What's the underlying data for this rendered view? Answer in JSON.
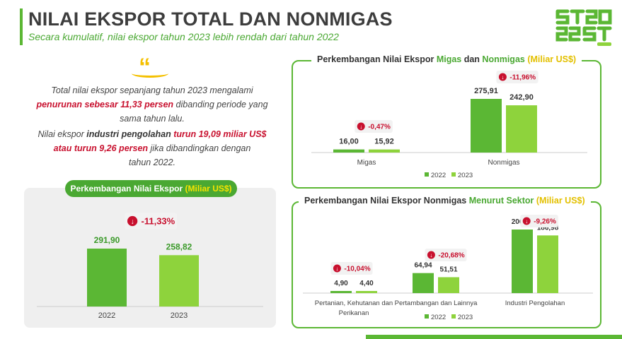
{
  "header": {
    "title": "NILAI EKSPOR TOTAL DAN NONMIGAS",
    "subtitle": "Secara kumulatif, nilai ekspor tahun 2023 lebih rendah dari tahun 2022",
    "logo_text": "ST2023"
  },
  "narrative": {
    "quote_mark": "“",
    "p1_a": "Total nilai ekspor sepanjang tahun 2023 mengalami",
    "p1_b_red": "penurunan sebesar 11,33 persen",
    "p1_b_rest": " dibanding periode yang",
    "p1_c": "sama tahun lalu.",
    "p2_a": "Nilai ekspor ",
    "p2_a_bold": "industri pengolahan",
    "p2_a_red": " turun 19,09 miliar US$",
    "p2_b_red": "atau turun 9,26 persen",
    "p2_b_rest": " jika dibandingkan dengan",
    "p2_c": "tahun 2022."
  },
  "panels": {
    "left_title_a": "Perkembangan Nilai Ekspor ",
    "left_title_b": "(Miliar US$)",
    "top_title_a": "Perkembangan Nilai Ekspor ",
    "top_title_b": "Migas",
    "top_title_c": " dan ",
    "top_title_d": "Nonmigas",
    "top_title_e": " (Miliar US$)",
    "bot_title_a": "Perkembangan Nilai Ekspor Nonmigas ",
    "bot_title_b": "Menurut Sektor",
    "bot_title_c": " (Miliar US$)"
  },
  "colors": {
    "bar_2022": "#5bb734",
    "bar_2023": "#8ed33c",
    "badge_red": "#c8102e",
    "axis": "#cccccc"
  },
  "chart_data": [
    {
      "type": "bar",
      "title": "Perkembangan Nilai Ekspor (Miliar US$)",
      "categories": [
        "2022",
        "2023"
      ],
      "values": [
        291.9,
        258.82
      ],
      "value_labels": [
        "291,90",
        "258,82"
      ],
      "change_label": "-11,33%"
    },
    {
      "type": "bar",
      "title": "Perkembangan Nilai Ekspor Migas dan Nonmigas (Miliar US$)",
      "categories": [
        "Migas",
        "Nonmigas"
      ],
      "series": [
        {
          "name": "2022",
          "values": [
            16.0,
            275.91
          ],
          "labels": [
            "16,00",
            "275,91"
          ]
        },
        {
          "name": "2023",
          "values": [
            15.92,
            242.9
          ],
          "labels": [
            "15,92",
            "242,90"
          ]
        }
      ],
      "change_labels": [
        "-0,47%",
        "-11,96%"
      ],
      "legend": "bottom-right"
    },
    {
      "type": "bar",
      "title": "Perkembangan Nilai Ekspor Nonmigas Menurut Sektor (Miliar US$)",
      "categories": [
        [
          "Pertanian, Kehutanan dan",
          "Perikanan"
        ],
        [
          "Pertambangan dan Lainnya"
        ],
        [
          "Industri Pengolahan"
        ]
      ],
      "series": [
        {
          "name": "2022",
          "values": [
            4.9,
            64.94,
            206.07
          ],
          "labels": [
            "4,90",
            "64,94",
            "206,07"
          ]
        },
        {
          "name": "2023",
          "values": [
            4.4,
            51.51,
            186.98
          ],
          "labels": [
            "4,40",
            "51,51",
            "186,98"
          ]
        }
      ],
      "change_labels": [
        "-10,04%",
        "-20,68%",
        "-9,26%"
      ],
      "legend": "bottom-right"
    }
  ]
}
